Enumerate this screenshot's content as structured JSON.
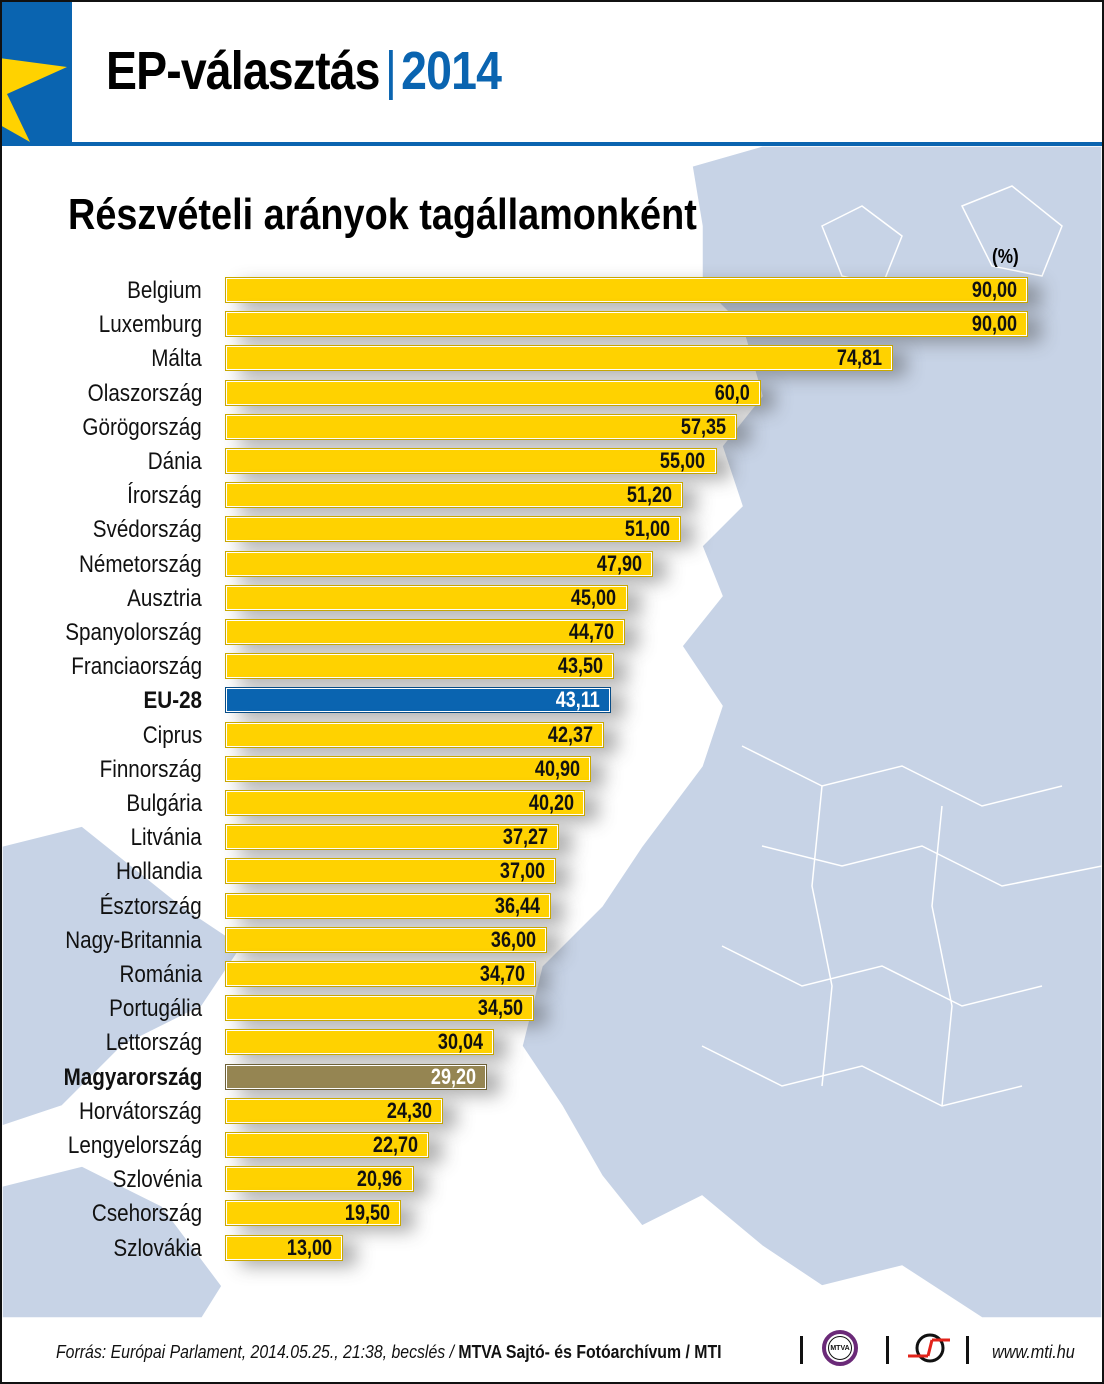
{
  "header": {
    "title": "EP-választás",
    "separator": "|",
    "year": "2014"
  },
  "colors": {
    "eu_blue": "#0a64b0",
    "bar_yellow": "#ffd200",
    "eu_bar": "#0a64b0",
    "hungary_bar": "#958552",
    "map_land": "#c7d3e6"
  },
  "chart_data": {
    "type": "bar",
    "orientation": "horizontal",
    "title": "Részvételi arányok tagállamonként",
    "unit_label": "(%)",
    "xlim": [
      0,
      90
    ],
    "categories": [
      "Belgium",
      "Luxemburg",
      "Málta",
      "Olaszország",
      "Görögország",
      "Dánia",
      "Írország",
      "Svédország",
      "Németország",
      "Ausztria",
      "Spanyolország",
      "Franciaország",
      "EU-28",
      "Ciprus",
      "Finnország",
      "Bulgária",
      "Litvánia",
      "Hollandia",
      "Észtország",
      "Nagy-Britannia",
      "Románia",
      "Portugália",
      "Lettország",
      "Magyarország",
      "Horvátország",
      "Lengyelország",
      "Szlovénia",
      "Csehország",
      "Szlovákia"
    ],
    "values": [
      90.0,
      90.0,
      74.81,
      60.0,
      57.35,
      55.0,
      51.2,
      51.0,
      47.9,
      45.0,
      44.7,
      43.5,
      43.11,
      42.37,
      40.9,
      40.2,
      37.27,
      37.0,
      36.44,
      36.0,
      34.7,
      34.5,
      30.04,
      29.2,
      24.3,
      22.7,
      20.96,
      19.5,
      13.0
    ],
    "value_labels": [
      "90,00",
      "90,00",
      "74,81",
      "60,0",
      "57,35",
      "55,00",
      "51,20",
      "51,00",
      "47,90",
      "45,00",
      "44,70",
      "43,50",
      "43,11",
      "42,37",
      "40,90",
      "40,20",
      "37,27",
      "37,00",
      "36,44",
      "36,00",
      "34,70",
      "34,50",
      "30,04",
      "29,20",
      "24,30",
      "22,70",
      "20,96",
      "19,50",
      "13,00"
    ],
    "highlights": {
      "EU-28": "eu",
      "Magyarország": "hungary"
    }
  },
  "footer": {
    "source_italic": "Forrás: Európai Parlament, 2014.05.25., 21:38, becslés / ",
    "source_bold": "MTVA Sajtó- és Fotóarchívum / MTI",
    "mtva_logo_text": "MTVA",
    "website": "www.mti.hu"
  }
}
